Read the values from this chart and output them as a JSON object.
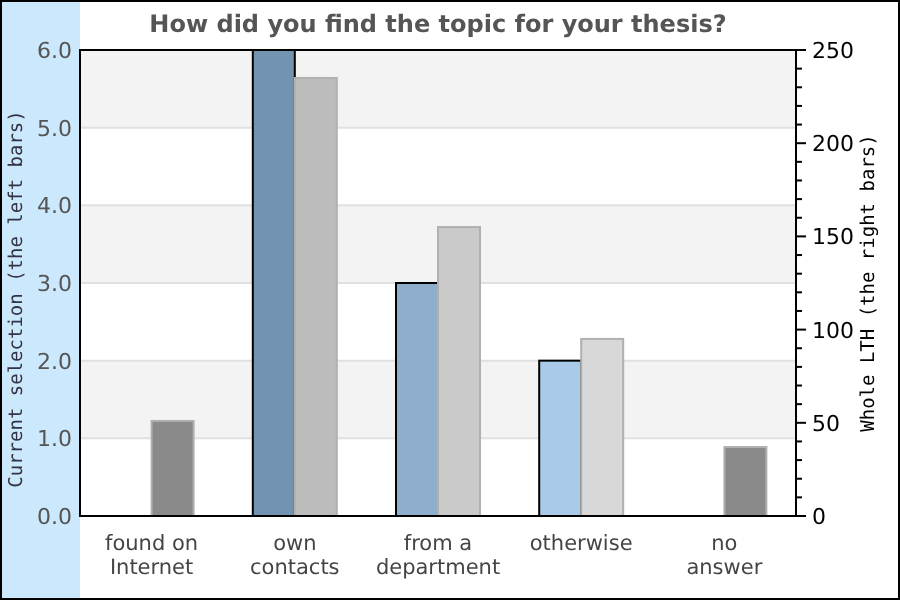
{
  "chart_data": {
    "type": "bar",
    "title": "How did you find the topic for your thesis?",
    "ylabel": "Current selection (the left bars)",
    "y2label": "Whole LTH (the right bars)",
    "categories": [
      "found on Internet",
      "own contacts",
      "from a department",
      "otherwise",
      "no answer"
    ],
    "series": [
      {
        "colors": [
          "#7394b0",
          "#7394b0",
          "#8eaecb",
          "#a9cbe7",
          "#a9cbe7"
        ],
        "values": [
          0,
          6,
          3,
          2,
          0
        ]
      },
      {
        "axis": "y2",
        "colors": [
          "#8a8a8a",
          "#bcbcbc",
          "#cacaca",
          "#d8d8d8",
          "#8a8a8a"
        ],
        "values": [
          51,
          235,
          155,
          95,
          37
        ]
      }
    ],
    "ylim": [
      0,
      6
    ],
    "yticks": [
      {
        "value": 0,
        "label": "0.0"
      },
      {
        "value": 1,
        "label": "1.0"
      },
      {
        "value": 2,
        "label": "2.0"
      },
      {
        "value": 3,
        "label": "3.0"
      },
      {
        "value": 4,
        "label": "4.0"
      },
      {
        "value": 5,
        "label": "5.0"
      },
      {
        "value": 6,
        "label": "6.0"
      }
    ],
    "y2lim": [
      0,
      250
    ],
    "y2ticks": [
      0,
      {
        "value": 10,
        "label": null
      },
      {
        "value": 20,
        "label": null
      },
      {
        "value": 30,
        "label": null
      },
      {
        "value": 40,
        "label": null
      },
      50,
      {
        "value": 60,
        "label": null
      },
      {
        "value": 70,
        "label": null
      },
      {
        "value": 80,
        "label": null
      },
      {
        "value": 90,
        "label": null
      },
      100,
      {
        "value": 110,
        "label": null
      },
      {
        "value": 120,
        "label": null
      },
      {
        "value": 130,
        "label": null
      },
      {
        "value": 140,
        "label": null
      },
      150,
      {
        "value": 160,
        "label": null
      },
      {
        "value": 170,
        "label": null
      },
      {
        "value": 180,
        "label": null
      },
      {
        "value": 190,
        "label": null
      },
      200,
      {
        "value": 210,
        "label": null
      },
      {
        "value": 220,
        "label": null
      },
      {
        "value": 230,
        "label": null
      },
      {
        "value": 240,
        "label": null
      },
      250
    ],
    "grid": "y"
  }
}
